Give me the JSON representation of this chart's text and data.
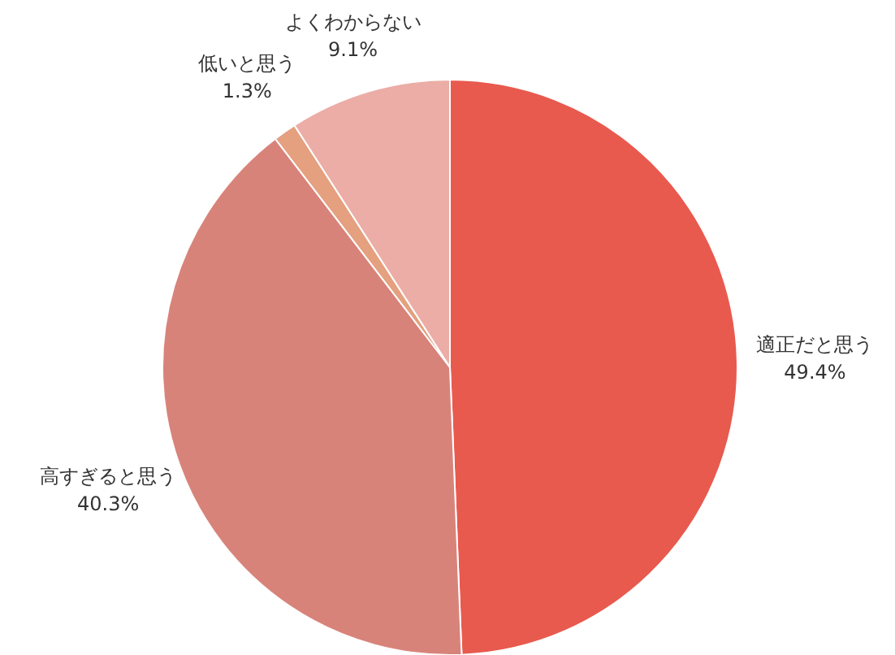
{
  "chart_data": {
    "type": "pie",
    "categories": [
      "適正だと思う",
      "高すぎると思う",
      "低いと思う",
      "よくわからない"
    ],
    "values": [
      49.4,
      40.3,
      1.3,
      9.1
    ],
    "value_labels": [
      "49.4%",
      "40.3%",
      "1.3%",
      "9.1%"
    ],
    "colors": [
      "#e85a4e",
      "#d8837a",
      "#e4a07f",
      "#ebada6"
    ]
  }
}
